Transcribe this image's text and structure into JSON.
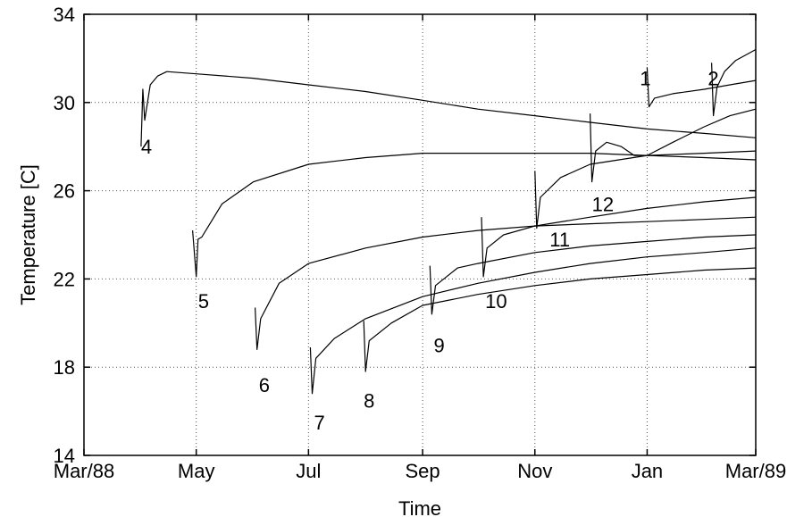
{
  "chart_data": {
    "type": "line",
    "title": "",
    "xlabel": "Time",
    "ylabel": "Temperature [C]",
    "x_range": [
      "1988-03-01",
      "1989-03-01"
    ],
    "ylim": [
      14,
      34
    ],
    "grid": "dotted",
    "x_ticks": [
      {
        "date": "1988-03-01",
        "label": "Mar/88"
      },
      {
        "date": "1988-05-01",
        "label": "May"
      },
      {
        "date": "1988-07-01",
        "label": "Jul"
      },
      {
        "date": "1988-09-01",
        "label": "Sep"
      },
      {
        "date": "1988-11-01",
        "label": "Nov"
      },
      {
        "date": "1989-01-01",
        "label": "Jan"
      },
      {
        "date": "1989-03-01",
        "label": "Mar/89"
      }
    ],
    "y_ticks": [
      14,
      18,
      22,
      26,
      30,
      34
    ],
    "series": [
      {
        "name": "1",
        "label_at": {
          "date": "1988-12-28",
          "y": 31.1
        },
        "points": [
          [
            "1989-01-01",
            31.6
          ],
          [
            "1989-01-02",
            29.8
          ],
          [
            "1989-01-05",
            30.2
          ],
          [
            "1989-01-15",
            30.4
          ],
          [
            "1989-02-01",
            30.6
          ],
          [
            "1989-02-15",
            30.8
          ],
          [
            "1989-03-01",
            31.0
          ]
        ]
      },
      {
        "name": "2",
        "label_at": {
          "date": "1989-02-03",
          "y": 31.1
        },
        "points": [
          [
            "1989-02-05",
            31.8
          ],
          [
            "1989-02-06",
            29.4
          ],
          [
            "1989-02-08",
            30.7
          ],
          [
            "1989-02-12",
            31.4
          ],
          [
            "1989-02-18",
            31.9
          ],
          [
            "1989-03-01",
            32.4
          ]
        ]
      },
      {
        "name": "4",
        "label_at": {
          "date": "1988-04-01",
          "y": 28.0
        },
        "points": [
          [
            "1988-04-01",
            28.0
          ],
          [
            "1988-04-02",
            30.6
          ],
          [
            "1988-04-03",
            29.2
          ],
          [
            "1988-04-06",
            30.8
          ],
          [
            "1988-04-10",
            31.2
          ],
          [
            "1988-04-15",
            31.4
          ],
          [
            "1988-05-01",
            31.3
          ],
          [
            "1988-06-01",
            31.1
          ],
          [
            "1988-07-01",
            30.8
          ],
          [
            "1988-08-01",
            30.5
          ],
          [
            "1988-09-01",
            30.1
          ],
          [
            "1988-10-01",
            29.7
          ],
          [
            "1988-11-01",
            29.4
          ],
          [
            "1988-12-01",
            29.1
          ],
          [
            "1989-01-01",
            28.8
          ],
          [
            "1989-02-01",
            28.6
          ],
          [
            "1989-03-01",
            28.4
          ]
        ]
      },
      {
        "name": "5",
        "label_at": {
          "date": "1988-05-02",
          "y": 21.0
        },
        "points": [
          [
            "1988-04-29",
            24.2
          ],
          [
            "1988-05-01",
            22.1
          ],
          [
            "1988-05-02",
            23.8
          ],
          [
            "1988-05-04",
            23.9
          ],
          [
            "1988-05-15",
            25.4
          ],
          [
            "1988-06-01",
            26.4
          ],
          [
            "1988-07-01",
            27.2
          ],
          [
            "1988-08-01",
            27.5
          ],
          [
            "1988-09-01",
            27.7
          ],
          [
            "1988-10-01",
            27.7
          ],
          [
            "1988-11-01",
            27.7
          ],
          [
            "1988-12-01",
            27.7
          ],
          [
            "1989-01-01",
            27.6
          ],
          [
            "1989-02-01",
            27.5
          ],
          [
            "1989-03-01",
            27.4
          ]
        ]
      },
      {
        "name": "6",
        "label_at": {
          "date": "1988-06-04",
          "y": 17.2
        },
        "points": [
          [
            "1988-06-02",
            20.7
          ],
          [
            "1988-06-03",
            18.8
          ],
          [
            "1988-06-05",
            20.2
          ],
          [
            "1988-06-15",
            21.8
          ],
          [
            "1988-07-01",
            22.7
          ],
          [
            "1988-08-01",
            23.4
          ],
          [
            "1988-09-01",
            23.9
          ],
          [
            "1988-10-01",
            24.2
          ],
          [
            "1988-11-01",
            24.4
          ],
          [
            "1988-12-01",
            24.5
          ],
          [
            "1989-01-01",
            24.6
          ],
          [
            "1989-02-01",
            24.7
          ],
          [
            "1989-03-01",
            24.8
          ]
        ]
      },
      {
        "name": "7",
        "label_at": {
          "date": "1988-07-04",
          "y": 15.5
        },
        "points": [
          [
            "1988-07-02",
            18.9
          ],
          [
            "1988-07-03",
            16.8
          ],
          [
            "1988-07-05",
            18.4
          ],
          [
            "1988-07-15",
            19.3
          ],
          [
            "1988-08-01",
            20.2
          ],
          [
            "1988-09-01",
            21.2
          ],
          [
            "1988-10-01",
            21.8
          ],
          [
            "1988-11-01",
            22.3
          ],
          [
            "1988-12-01",
            22.7
          ],
          [
            "1989-01-01",
            23.0
          ],
          [
            "1989-02-01",
            23.2
          ],
          [
            "1989-03-01",
            23.4
          ]
        ]
      },
      {
        "name": "8",
        "label_at": {
          "date": "1988-07-31",
          "y": 16.5
        },
        "points": [
          [
            "1988-07-31",
            20.1
          ],
          [
            "1988-08-01",
            17.8
          ],
          [
            "1988-08-03",
            19.2
          ],
          [
            "1988-08-15",
            20.0
          ],
          [
            "1988-09-01",
            20.8
          ],
          [
            "1988-10-01",
            21.3
          ],
          [
            "1988-11-01",
            21.7
          ],
          [
            "1988-12-01",
            22.0
          ],
          [
            "1989-01-01",
            22.2
          ],
          [
            "1989-02-01",
            22.4
          ],
          [
            "1989-03-01",
            22.5
          ]
        ]
      },
      {
        "name": "9",
        "label_at": {
          "date": "1988-09-07",
          "y": 19.0
        },
        "points": [
          [
            "1988-09-05",
            22.6
          ],
          [
            "1988-09-06",
            20.4
          ],
          [
            "1988-09-08",
            21.7
          ],
          [
            "1988-09-20",
            22.5
          ],
          [
            "1988-10-01",
            22.7
          ],
          [
            "1988-11-01",
            23.2
          ],
          [
            "1988-12-01",
            23.5
          ],
          [
            "1989-01-01",
            23.7
          ],
          [
            "1989-02-01",
            23.9
          ],
          [
            "1989-03-01",
            24.0
          ]
        ]
      },
      {
        "name": "10",
        "label_at": {
          "date": "1988-10-05",
          "y": 21.0
        },
        "points": [
          [
            "1988-10-03",
            24.8
          ],
          [
            "1988-10-04",
            22.1
          ],
          [
            "1988-10-06",
            23.4
          ],
          [
            "1988-10-15",
            24.0
          ],
          [
            "1988-11-01",
            24.4
          ],
          [
            "1988-12-01",
            24.8
          ],
          [
            "1989-01-01",
            25.2
          ],
          [
            "1989-02-01",
            25.5
          ],
          [
            "1989-03-01",
            25.7
          ]
        ]
      },
      {
        "name": "11",
        "label_at": {
          "date": "1988-11-09",
          "y": 23.8
        },
        "points": [
          [
            "1988-11-01",
            26.9
          ],
          [
            "1988-11-02",
            24.3
          ],
          [
            "1988-11-04",
            25.7
          ],
          [
            "1988-11-15",
            26.6
          ],
          [
            "1988-12-01",
            27.2
          ],
          [
            "1989-01-01",
            27.6
          ],
          [
            "1989-02-01",
            27.7
          ],
          [
            "1989-03-01",
            27.8
          ]
        ]
      },
      {
        "name": "12",
        "label_at": {
          "date": "1988-12-02",
          "y": 25.4
        },
        "points": [
          [
            "1988-12-01",
            29.5
          ],
          [
            "1988-12-02",
            26.4
          ],
          [
            "1988-12-04",
            27.8
          ],
          [
            "1988-12-10",
            28.2
          ],
          [
            "1988-12-18",
            28.0
          ],
          [
            "1988-12-25",
            27.6
          ],
          [
            "1989-01-01",
            27.6
          ],
          [
            "1989-01-15",
            28.2
          ],
          [
            "1989-02-01",
            28.9
          ],
          [
            "1989-02-15",
            29.4
          ],
          [
            "1989-03-01",
            29.7
          ]
        ]
      }
    ]
  }
}
